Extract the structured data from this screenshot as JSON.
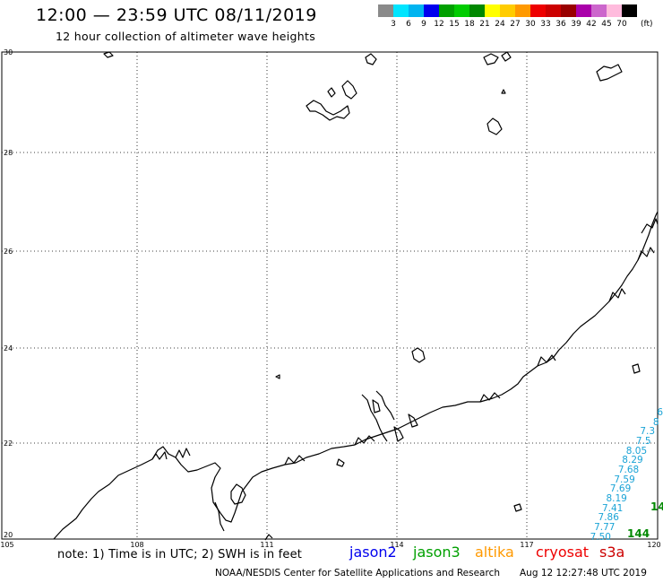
{
  "header": {
    "title": "12:00 — 23:59 UTC 08/11/2019",
    "subtitle": "12 hour collection of altimeter wave heights"
  },
  "colorbar": {
    "unit": "(ft)",
    "labels": [
      "3",
      "6",
      "9",
      "12",
      "15",
      "18",
      "21",
      "24",
      "27",
      "30",
      "33",
      "36",
      "39",
      "42",
      "45",
      "70"
    ],
    "colors": [
      "#8a8a8a",
      "#00e5ff",
      "#00b4f0",
      "#0000ee",
      "#00a000",
      "#00cc00",
      "#008800",
      "#ffff00",
      "#ffcc00",
      "#ff9900",
      "#ee0000",
      "#cc0000",
      "#990000",
      "#aa00aa",
      "#cc66cc",
      "#ffbbdd",
      "#000000"
    ]
  },
  "map": {
    "lat_labels": [
      "30",
      "28",
      "26",
      "24",
      "22",
      "20"
    ],
    "lon_labels": [
      "105",
      "108",
      "111",
      "114",
      "117",
      "120"
    ]
  },
  "legend": {
    "note": "note: 1) Time is in UTC; 2) SWH is in feet",
    "satellites": [
      {
        "name": "jason2",
        "color": "#0000ee"
      },
      {
        "name": "jason3",
        "color": "#00a000"
      },
      {
        "name": "altika",
        "color": "#ff9900"
      },
      {
        "name": "cryosat",
        "color": "#ee0000"
      },
      {
        "name": "s3a",
        "color": "#cc0000"
      }
    ]
  },
  "footer": {
    "credit": "NOAA/NESDIS Center for Satellite Applications and Research",
    "timestamp": "Aug 12 12:27:48 UTC 2019"
  },
  "swh_track": {
    "color": "#1aa3d6",
    "values": [
      "6",
      "8",
      "7.3",
      "7.5",
      "8.05",
      "8.29",
      "7.68",
      "7.59",
      "7.69",
      "8.19",
      "7.41",
      "7.86",
      "7.77",
      "7.50"
    ],
    "marker_color": "#008800",
    "markers": [
      "14",
      "144"
    ]
  }
}
